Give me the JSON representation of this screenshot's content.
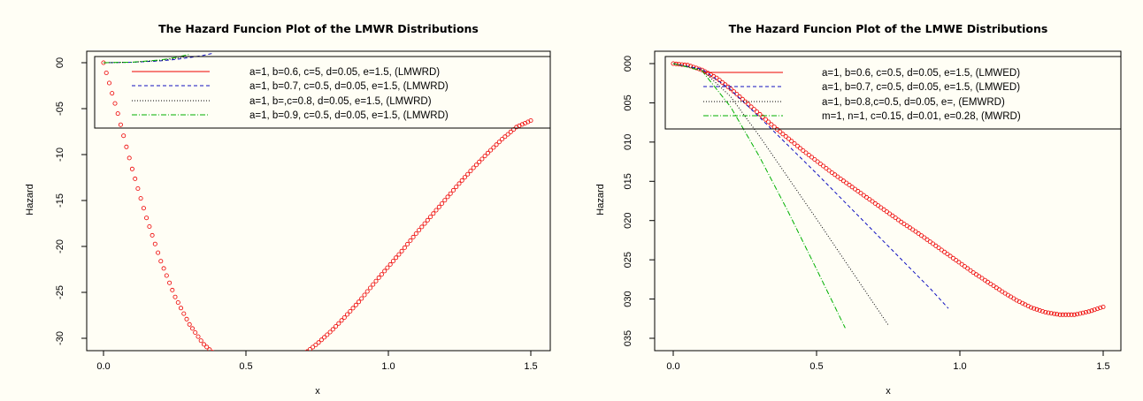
{
  "chart_data": [
    {
      "type": "line",
      "title": "The Hazard Funcion Plot of the LMWR Distributions",
      "xlabel": "x",
      "ylabel": "Hazard",
      "xlim": [
        0,
        1.5
      ],
      "ylim": [
        -35,
        1
      ],
      "x_ticks": [
        0,
        0.5,
        1,
        1.5
      ],
      "x_tick_labels": [
        "0.0",
        "0.5",
        "1.0",
        "1.5"
      ],
      "y_ticks": [
        0,
        -5,
        -10,
        -15,
        -20,
        -25,
        -30
      ],
      "y_tick_labels": [
        "00",
        "-05",
        "-10",
        "-15",
        "-20",
        "-25",
        "-30"
      ],
      "legend_position": "top-right",
      "series": [
        {
          "name": "a=1, b=0.6, c=5, d=0.05, e=1.5, (LMWRD)",
          "color": "#ee0000",
          "style": "circles",
          "x": [
            0,
            0.05,
            0.1,
            0.15,
            0.2,
            0.25,
            0.3,
            0.35,
            0.4,
            0.45,
            0.5,
            0.55,
            0.6,
            0.65,
            0.7,
            0.75,
            0.8,
            0.85,
            0.9,
            0.95,
            1.0,
            1.05,
            1.1,
            1.15,
            1.2,
            1.25,
            1.3,
            1.35,
            1.4,
            1.45,
            1.5
          ],
          "y": [
            0,
            -5.5,
            -11.5,
            -16.8,
            -21.5,
            -25.4,
            -28.4,
            -30.6,
            -32.0,
            -32.8,
            -33.1,
            -33.2,
            -33.0,
            -32.6,
            -31.8,
            -30.6,
            -29.2,
            -27.6,
            -25.9,
            -24.0,
            -22.2,
            -20.4,
            -18.5,
            -16.7,
            -14.9,
            -13.1,
            -11.4,
            -9.8,
            -8.3,
            -7.0,
            -6.3
          ]
        },
        {
          "name": "a=1, b=0.7, c=0.5, d=0.05, e=1.5, (LMWRD)",
          "color": "#1010c0",
          "style": "dashed",
          "x": [
            0,
            0.1,
            0.2,
            0.25,
            0.3,
            0.35,
            0.38
          ],
          "y": [
            0,
            0.05,
            0.2,
            0.35,
            0.55,
            0.8,
            1.0
          ]
        },
        {
          "name": "a=1, b=,c=0.8, d=0.05, e=1.5, (LMWRD)",
          "color": "#000000",
          "style": "dotted",
          "x": [
            0,
            0.1,
            0.2,
            0.25,
            0.3
          ],
          "y": [
            0,
            0.05,
            0.25,
            0.45,
            0.7
          ]
        },
        {
          "name": "a=1, b=0.9, c=0.5, d=0.05, e=1.5, (LMWRD)",
          "color": "#00b000",
          "style": "dotdash",
          "x": [
            0,
            0.1,
            0.2,
            0.25,
            0.3
          ],
          "y": [
            0,
            0.06,
            0.3,
            0.55,
            0.9
          ]
        }
      ]
    },
    {
      "type": "line",
      "title": "The Hazard Funcion Plot of the LMWE Distributions",
      "xlabel": "x",
      "ylabel": "Hazard",
      "xlim": [
        0,
        1.5
      ],
      "ylim": [
        -0.0015,
        0.0365
      ],
      "x_ticks": [
        0,
        0.5,
        1,
        1.5
      ],
      "x_tick_labels": [
        "0.0",
        "0.5",
        "1.0",
        "1.5"
      ],
      "y_ticks": [
        0,
        0.005,
        0.01,
        0.015,
        0.02,
        0.025,
        0.03,
        0.035
      ],
      "y_tick_labels": [
        "000",
        "005",
        "010",
        "015",
        "020",
        "025",
        "030",
        "035"
      ],
      "legend_position": "top-right",
      "series": [
        {
          "name": "a=1, b=0.6, c=0.5, d=0.05, e=1.5, (LMWED)",
          "color": "#ee0000",
          "style": "circles",
          "x": [
            0,
            0.05,
            0.1,
            0.15,
            0.2,
            0.25,
            0.3,
            0.35,
            0.4,
            0.45,
            0.5,
            0.55,
            0.6,
            0.65,
            0.7,
            0.75,
            0.8,
            0.85,
            0.9,
            0.95,
            1.0,
            1.05,
            1.1,
            1.15,
            1.2,
            1.25,
            1.3,
            1.35,
            1.4,
            1.45,
            1.5
          ],
          "y": [
            0,
            0.0002,
            0.0008,
            0.0018,
            0.0032,
            0.0048,
            0.0064,
            0.008,
            0.0095,
            0.011,
            0.0124,
            0.0138,
            0.0151,
            0.0164,
            0.0177,
            0.019,
            0.0203,
            0.0215,
            0.0228,
            0.0241,
            0.0254,
            0.0267,
            0.0279,
            0.0291,
            0.0302,
            0.0311,
            0.0317,
            0.032,
            0.032,
            0.0316,
            0.031
          ]
        },
        {
          "name": "a=1, b=0.7, c=0.5, d=0.05, e=1.5, (LMWED)",
          "color": "#1010c0",
          "style": "dashed",
          "x": [
            0,
            0.1,
            0.2,
            0.3,
            0.4,
            0.5,
            0.6,
            0.7,
            0.8,
            0.9,
            0.96
          ],
          "y": [
            0,
            0.0007,
            0.0033,
            0.0068,
            0.0104,
            0.014,
            0.0177,
            0.0214,
            0.0251,
            0.0288,
            0.0312
          ]
        },
        {
          "name": "a=1, b=0.8,c=0.5, d=0.05, e=, (EMWRD)",
          "color": "#000000",
          "style": "dotted",
          "x": [
            0,
            0.1,
            0.2,
            0.3,
            0.4,
            0.5,
            0.6,
            0.7,
            0.75
          ],
          "y": [
            0,
            0.0008,
            0.0042,
            0.0092,
            0.0145,
            0.0198,
            0.0252,
            0.0306,
            0.0333
          ]
        },
        {
          "name": "m=1, n=1, c=0.15, d=0.01, e=0.28, (MWRD)",
          "color": "#00b000",
          "style": "dotdash",
          "x": [
            0,
            0.1,
            0.2,
            0.3,
            0.4,
            0.5,
            0.6
          ],
          "y": [
            0,
            0.0009,
            0.0055,
            0.0118,
            0.0188,
            0.0262,
            0.0337
          ]
        }
      ]
    }
  ]
}
